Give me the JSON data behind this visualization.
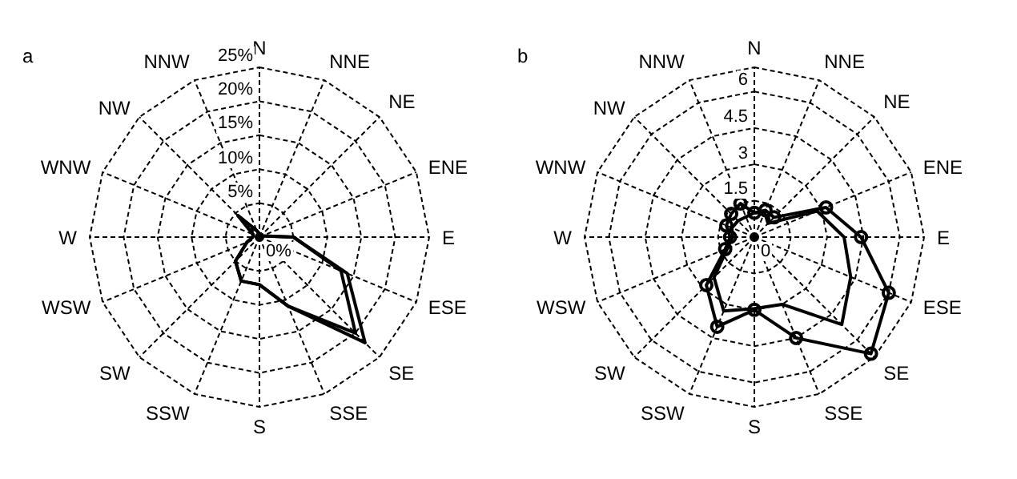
{
  "chart_data": [
    {
      "type": "radar",
      "title": "a",
      "categories": [
        "N",
        "NNE",
        "NE",
        "ENE",
        "E",
        "ESE",
        "SE",
        "SSE",
        "S",
        "SSW",
        "SW",
        "WSW",
        "W",
        "WNW",
        "NW",
        "NNW"
      ],
      "series": [
        {
          "color": "#000000",
          "values": [
            0.5,
            0.5,
            0.5,
            0.5,
            5,
            14,
            22,
            11,
            7,
            7,
            5,
            2,
            1,
            1,
            4.5,
            1
          ]
        },
        {
          "color": "#000000",
          "values": [
            0.5,
            0.5,
            0.5,
            0.5,
            5,
            13,
            20,
            11,
            7,
            7,
            5,
            2,
            1,
            1,
            4.5,
            1
          ]
        }
      ],
      "ylim": [
        0,
        25
      ],
      "yticks": [
        {
          "value": 0,
          "label": "0%"
        },
        {
          "value": 5,
          "label": "5%"
        },
        {
          "value": 10,
          "label": "10%"
        },
        {
          "value": 15,
          "label": "15%"
        },
        {
          "value": 20,
          "label": "20%"
        },
        {
          "value": 25,
          "label": "25%"
        }
      ],
      "grid": true,
      "line_style": "solid",
      "marker": "none"
    },
    {
      "type": "radar",
      "title": "b",
      "categories": [
        "N",
        "NNE",
        "NE",
        "ENE",
        "E",
        "ESE",
        "SE",
        "SSE",
        "S",
        "SSW",
        "SW",
        "WSW",
        "W",
        "WNW",
        "NW",
        "NNW"
      ],
      "series": [
        {
          "color": "#000000",
          "marker": "circle",
          "values": [
            1.0,
            1.2,
            1.15,
            3.2,
            4.4,
            6.0,
            6.8,
            4.5,
            3.0,
            4.0,
            2.8,
            1.3,
            1.0,
            1.25,
            1.35,
            1.5
          ]
        },
        {
          "color": "#000000",
          "marker": "none",
          "values": [
            1.0,
            1.1,
            0.8,
            2.8,
            3.7,
            4.3,
            5.1,
            3.0,
            2.95,
            3.3,
            2.35,
            1.2,
            0.9,
            1.0,
            0.95,
            0.9
          ]
        }
      ],
      "ylim": [
        0,
        7
      ],
      "yticks": [
        0,
        1.5,
        3,
        4.5,
        6
      ],
      "grid": true,
      "line_style": "solid"
    }
  ]
}
